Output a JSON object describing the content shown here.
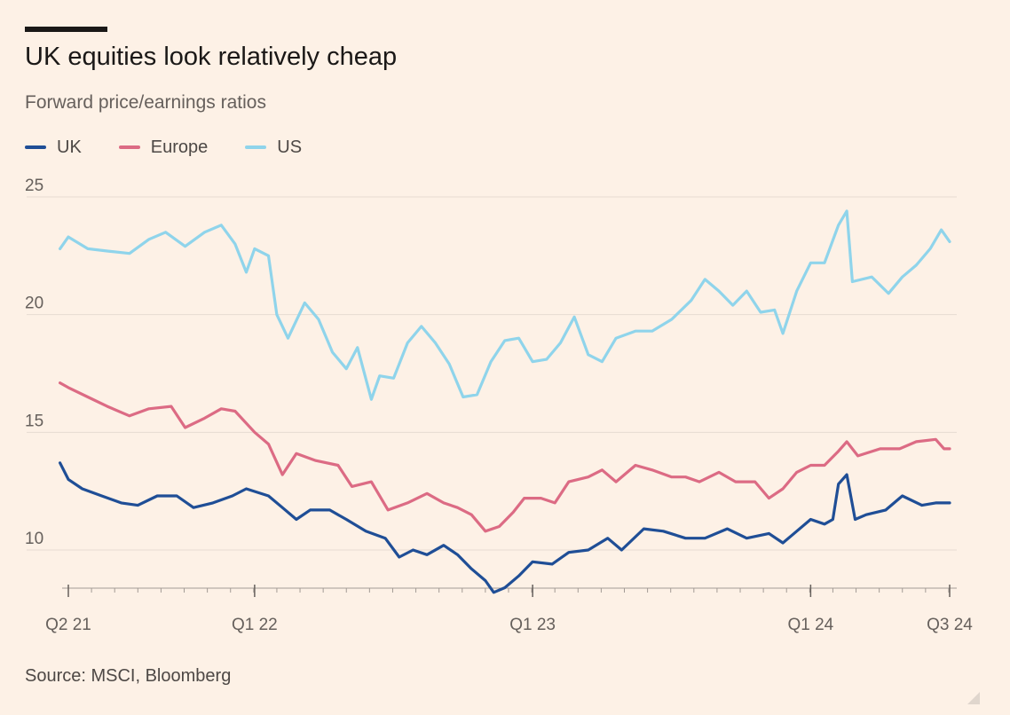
{
  "header": {
    "title": "UK equities look relatively cheap",
    "subtitle": "Forward price/earnings ratios"
  },
  "source": "Source: MSCI, Bloomberg",
  "colors": {
    "background": "#fdf1e6",
    "uk": "#1f4e96",
    "europe": "#dc6b84",
    "us": "#8fd4eb",
    "grid": "#e6dbd1"
  },
  "chart_data": {
    "type": "line",
    "title": "UK equities look relatively cheap",
    "subtitle": "Forward price/earnings ratios",
    "xlabel": "",
    "ylabel": "",
    "ylim": [
      8,
      25
    ],
    "yticks": [
      10,
      15,
      20,
      25
    ],
    "xlim": [
      2021.3,
      2024.55
    ],
    "xticks": [
      {
        "label": "Q2 21",
        "value": 2021.33
      },
      {
        "label": "Q1 22",
        "value": 2022.0
      },
      {
        "label": "Q1 23",
        "value": 2023.0
      },
      {
        "label": "Q1 24",
        "value": 2024.0
      },
      {
        "label": "Q3 24",
        "value": 2024.5
      }
    ],
    "grid": "horizontal",
    "legend": "top-left",
    "series": [
      {
        "name": "UK",
        "color": "#1f4e96",
        "points": [
          [
            2021.3,
            13.7
          ],
          [
            2021.33,
            13.0
          ],
          [
            2021.38,
            12.6
          ],
          [
            2021.45,
            12.3
          ],
          [
            2021.52,
            12.0
          ],
          [
            2021.58,
            11.9
          ],
          [
            2021.65,
            12.3
          ],
          [
            2021.72,
            12.3
          ],
          [
            2021.78,
            11.8
          ],
          [
            2021.85,
            12.0
          ],
          [
            2021.92,
            12.3
          ],
          [
            2021.97,
            12.6
          ],
          [
            2022.05,
            12.3
          ],
          [
            2022.1,
            11.8
          ],
          [
            2022.15,
            11.3
          ],
          [
            2022.2,
            11.7
          ],
          [
            2022.27,
            11.7
          ],
          [
            2022.33,
            11.3
          ],
          [
            2022.4,
            10.8
          ],
          [
            2022.47,
            10.5
          ],
          [
            2022.52,
            9.7
          ],
          [
            2022.57,
            10.0
          ],
          [
            2022.62,
            9.8
          ],
          [
            2022.68,
            10.2
          ],
          [
            2022.73,
            9.8
          ],
          [
            2022.78,
            9.2
          ],
          [
            2022.83,
            8.7
          ],
          [
            2022.86,
            8.2
          ],
          [
            2022.9,
            8.4
          ],
          [
            2022.95,
            8.9
          ],
          [
            2023.0,
            9.5
          ],
          [
            2023.07,
            9.4
          ],
          [
            2023.13,
            9.9
          ],
          [
            2023.2,
            10.0
          ],
          [
            2023.27,
            10.5
          ],
          [
            2023.32,
            10.0
          ],
          [
            2023.4,
            10.9
          ],
          [
            2023.47,
            10.8
          ],
          [
            2023.55,
            10.5
          ],
          [
            2023.62,
            10.5
          ],
          [
            2023.7,
            10.9
          ],
          [
            2023.77,
            10.5
          ],
          [
            2023.85,
            10.7
          ],
          [
            2023.9,
            10.3
          ],
          [
            2023.95,
            10.8
          ],
          [
            2024.0,
            11.3
          ],
          [
            2024.05,
            11.1
          ],
          [
            2024.08,
            11.3
          ],
          [
            2024.1,
            12.8
          ],
          [
            2024.13,
            13.2
          ],
          [
            2024.16,
            11.3
          ],
          [
            2024.2,
            11.5
          ],
          [
            2024.27,
            11.7
          ],
          [
            2024.33,
            12.3
          ],
          [
            2024.4,
            11.9
          ],
          [
            2024.45,
            12.0
          ],
          [
            2024.5,
            12.0
          ]
        ]
      },
      {
        "name": "Europe",
        "color": "#dc6b84",
        "points": [
          [
            2021.3,
            17.1
          ],
          [
            2021.33,
            16.9
          ],
          [
            2021.4,
            16.5
          ],
          [
            2021.47,
            16.1
          ],
          [
            2021.55,
            15.7
          ],
          [
            2021.62,
            16.0
          ],
          [
            2021.7,
            16.1
          ],
          [
            2021.75,
            15.2
          ],
          [
            2021.82,
            15.6
          ],
          [
            2021.88,
            16.0
          ],
          [
            2021.93,
            15.9
          ],
          [
            2022.0,
            15.0
          ],
          [
            2022.05,
            14.5
          ],
          [
            2022.1,
            13.2
          ],
          [
            2022.15,
            14.1
          ],
          [
            2022.22,
            13.8
          ],
          [
            2022.3,
            13.6
          ],
          [
            2022.35,
            12.7
          ],
          [
            2022.42,
            12.9
          ],
          [
            2022.48,
            11.7
          ],
          [
            2022.55,
            12.0
          ],
          [
            2022.62,
            12.4
          ],
          [
            2022.68,
            12.0
          ],
          [
            2022.73,
            11.8
          ],
          [
            2022.78,
            11.5
          ],
          [
            2022.83,
            10.8
          ],
          [
            2022.88,
            11.0
          ],
          [
            2022.93,
            11.6
          ],
          [
            2022.97,
            12.2
          ],
          [
            2023.03,
            12.2
          ],
          [
            2023.08,
            12.0
          ],
          [
            2023.13,
            12.9
          ],
          [
            2023.2,
            13.1
          ],
          [
            2023.25,
            13.4
          ],
          [
            2023.3,
            12.9
          ],
          [
            2023.37,
            13.6
          ],
          [
            2023.43,
            13.4
          ],
          [
            2023.5,
            13.1
          ],
          [
            2023.55,
            13.1
          ],
          [
            2023.6,
            12.9
          ],
          [
            2023.67,
            13.3
          ],
          [
            2023.73,
            12.9
          ],
          [
            2023.8,
            12.9
          ],
          [
            2023.85,
            12.2
          ],
          [
            2023.9,
            12.6
          ],
          [
            2023.95,
            13.3
          ],
          [
            2024.0,
            13.6
          ],
          [
            2024.05,
            13.6
          ],
          [
            2024.1,
            14.2
          ],
          [
            2024.13,
            14.6
          ],
          [
            2024.17,
            14.0
          ],
          [
            2024.25,
            14.3
          ],
          [
            2024.32,
            14.3
          ],
          [
            2024.38,
            14.6
          ],
          [
            2024.45,
            14.7
          ],
          [
            2024.48,
            14.3
          ],
          [
            2024.5,
            14.3
          ]
        ]
      },
      {
        "name": "US",
        "color": "#8fd4eb",
        "points": [
          [
            2021.3,
            22.8
          ],
          [
            2021.33,
            23.3
          ],
          [
            2021.4,
            22.8
          ],
          [
            2021.47,
            22.7
          ],
          [
            2021.55,
            22.6
          ],
          [
            2021.62,
            23.2
          ],
          [
            2021.68,
            23.5
          ],
          [
            2021.75,
            22.9
          ],
          [
            2021.82,
            23.5
          ],
          [
            2021.88,
            23.8
          ],
          [
            2021.93,
            23.0
          ],
          [
            2021.97,
            21.8
          ],
          [
            2022.0,
            22.8
          ],
          [
            2022.05,
            22.5
          ],
          [
            2022.08,
            20.0
          ],
          [
            2022.12,
            19.0
          ],
          [
            2022.18,
            20.5
          ],
          [
            2022.23,
            19.8
          ],
          [
            2022.28,
            18.4
          ],
          [
            2022.33,
            17.7
          ],
          [
            2022.37,
            18.6
          ],
          [
            2022.42,
            16.4
          ],
          [
            2022.45,
            17.4
          ],
          [
            2022.5,
            17.3
          ],
          [
            2022.55,
            18.8
          ],
          [
            2022.6,
            19.5
          ],
          [
            2022.65,
            18.8
          ],
          [
            2022.7,
            17.9
          ],
          [
            2022.75,
            16.5
          ],
          [
            2022.8,
            16.6
          ],
          [
            2022.85,
            18.0
          ],
          [
            2022.9,
            18.9
          ],
          [
            2022.95,
            19.0
          ],
          [
            2023.0,
            18.0
          ],
          [
            2023.05,
            18.1
          ],
          [
            2023.1,
            18.8
          ],
          [
            2023.15,
            19.9
          ],
          [
            2023.2,
            18.3
          ],
          [
            2023.25,
            18.0
          ],
          [
            2023.3,
            19.0
          ],
          [
            2023.37,
            19.3
          ],
          [
            2023.43,
            19.3
          ],
          [
            2023.5,
            19.8
          ],
          [
            2023.57,
            20.6
          ],
          [
            2023.62,
            21.5
          ],
          [
            2023.67,
            21.0
          ],
          [
            2023.72,
            20.4
          ],
          [
            2023.77,
            21.0
          ],
          [
            2023.82,
            20.1
          ],
          [
            2023.87,
            20.2
          ],
          [
            2023.9,
            19.2
          ],
          [
            2023.95,
            21.0
          ],
          [
            2024.0,
            22.2
          ],
          [
            2024.05,
            22.2
          ],
          [
            2024.1,
            23.8
          ],
          [
            2024.13,
            24.4
          ],
          [
            2024.15,
            21.4
          ],
          [
            2024.22,
            21.6
          ],
          [
            2024.28,
            20.9
          ],
          [
            2024.33,
            21.6
          ],
          [
            2024.38,
            22.1
          ],
          [
            2024.43,
            22.8
          ],
          [
            2024.47,
            23.6
          ],
          [
            2024.5,
            23.1
          ]
        ]
      }
    ]
  }
}
